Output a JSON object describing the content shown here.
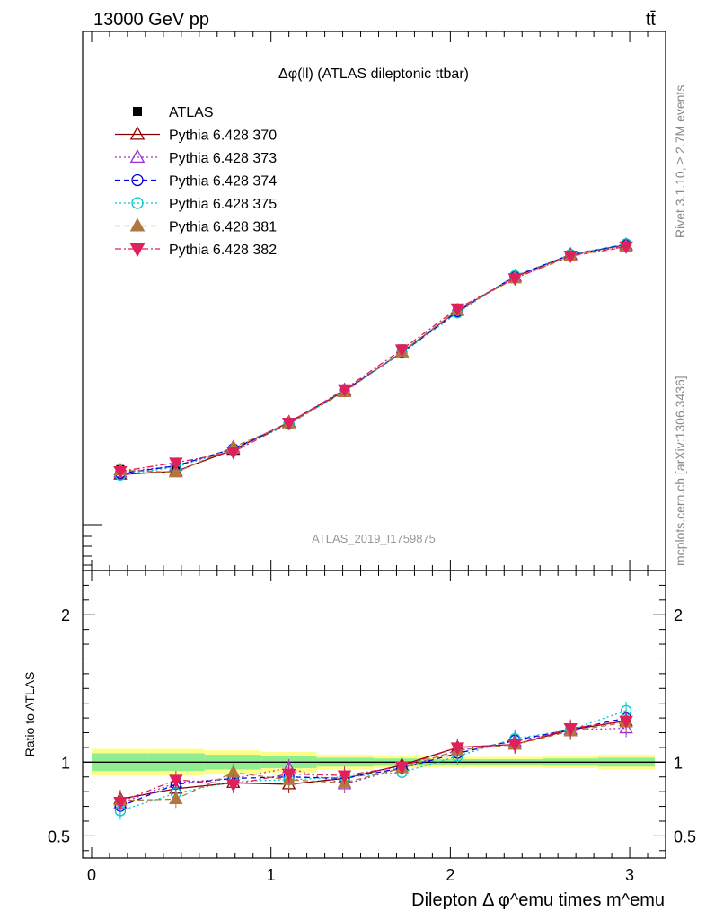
{
  "header": {
    "left_label": "13000 GeV pp",
    "right_label": "tt̄"
  },
  "side_labels": {
    "rivet": "Rivet 3.1.10, ≥ 2.7M events",
    "mcplots": "mcplots.cern.ch [arXiv:1306.3436]"
  },
  "chart_data": {
    "type": "line",
    "title": "Δφ(ll) (ATLAS dileptonic ttbar)",
    "watermark": "ATLAS_2019_I1759875",
    "xlabel": "Dilepton Δ φ^emu times m^emu",
    "x_ticks": [
      "0",
      "1",
      "2",
      "3"
    ],
    "x": [
      0.16,
      0.47,
      0.79,
      1.1,
      1.41,
      1.73,
      2.04,
      2.36,
      2.67,
      2.98
    ],
    "main_panel": {
      "y_axis": "no tick labels shown",
      "ylim": [
        0,
        1
      ]
    },
    "series": [
      {
        "name": "ATLAS",
        "color": "#000000",
        "marker": "square",
        "style": "none",
        "values": [
          0.188,
          0.193,
          0.225,
          0.27,
          0.335,
          0.412,
          0.484,
          0.545,
          0.586,
          0.604
        ]
      },
      {
        "name": "Pythia 6.428 370",
        "color": "#8b0000",
        "marker": "triangle-open",
        "style": "solid",
        "values": [
          0.178,
          0.184,
          0.224,
          0.275,
          0.333,
          0.405,
          0.482,
          0.545,
          0.586,
          0.604
        ]
      },
      {
        "name": "Pythia 6.428 373",
        "color": "#9b30d0",
        "marker": "triangle-open",
        "style": "dotted",
        "values": [
          0.182,
          0.194,
          0.226,
          0.274,
          0.335,
          0.405,
          0.482,
          0.546,
          0.585,
          0.603
        ]
      },
      {
        "name": "Pythia 6.428 374",
        "color": "#0000e0",
        "marker": "circle-open",
        "style": "dashed",
        "values": [
          0.18,
          0.194,
          0.226,
          0.272,
          0.334,
          0.404,
          0.48,
          0.546,
          0.586,
          0.605
        ]
      },
      {
        "name": "Pythia 6.428 375",
        "color": "#00c8c8",
        "marker": "circle-open",
        "style": "dotted",
        "values": [
          0.177,
          0.192,
          0.224,
          0.271,
          0.333,
          0.403,
          0.478,
          0.547,
          0.586,
          0.606
        ]
      },
      {
        "name": "Pythia 6.428 381",
        "color": "#b07840",
        "marker": "triangle-filled",
        "style": "dashed",
        "values": [
          0.186,
          0.182,
          0.229,
          0.273,
          0.331,
          0.406,
          0.483,
          0.542,
          0.583,
          0.6
        ]
      },
      {
        "name": "Pythia 6.428 382",
        "color": "#e0205a",
        "marker": "triangle-down-filled",
        "style": "dashdot",
        "values": [
          0.184,
          0.2,
          0.22,
          0.274,
          0.336,
          0.41,
          0.486,
          0.542,
          0.584,
          0.601
        ]
      }
    ],
    "ratio_panel": {
      "ylabel": "Ratio to ATLAS",
      "ylim": [
        0.35,
        2.3
      ],
      "y_ticks": [
        "0.5",
        "1",
        "2"
      ],
      "band_inner": [
        0.06,
        0.06,
        0.05,
        0.04,
        0.03,
        0.025,
        0.02,
        0.02,
        0.025,
        0.03
      ],
      "band_outer": [
        0.09,
        0.09,
        0.08,
        0.07,
        0.05,
        0.04,
        0.035,
        0.035,
        0.04,
        0.05
      ],
      "ratios": [
        [
          0.75,
          0.82,
          0.86,
          0.85,
          0.89,
          0.98,
          1.1,
          1.12,
          1.22,
          1.28
        ],
        [
          0.72,
          0.86,
          0.89,
          0.96,
          0.85,
          0.96,
          1.08,
          1.14,
          1.22,
          1.23
        ],
        [
          0.7,
          0.85,
          0.89,
          0.9,
          0.89,
          0.96,
          1.06,
          1.15,
          1.22,
          1.3
        ],
        [
          0.67,
          0.79,
          0.87,
          0.88,
          0.9,
          0.93,
          1.04,
          1.16,
          1.22,
          1.35
        ],
        [
          0.74,
          0.75,
          0.93,
          0.88,
          0.86,
          0.96,
          1.08,
          1.12,
          1.21,
          1.27
        ],
        [
          0.73,
          0.88,
          0.85,
          0.92,
          0.91,
          0.97,
          1.1,
          1.12,
          1.23,
          1.28
        ]
      ]
    }
  }
}
